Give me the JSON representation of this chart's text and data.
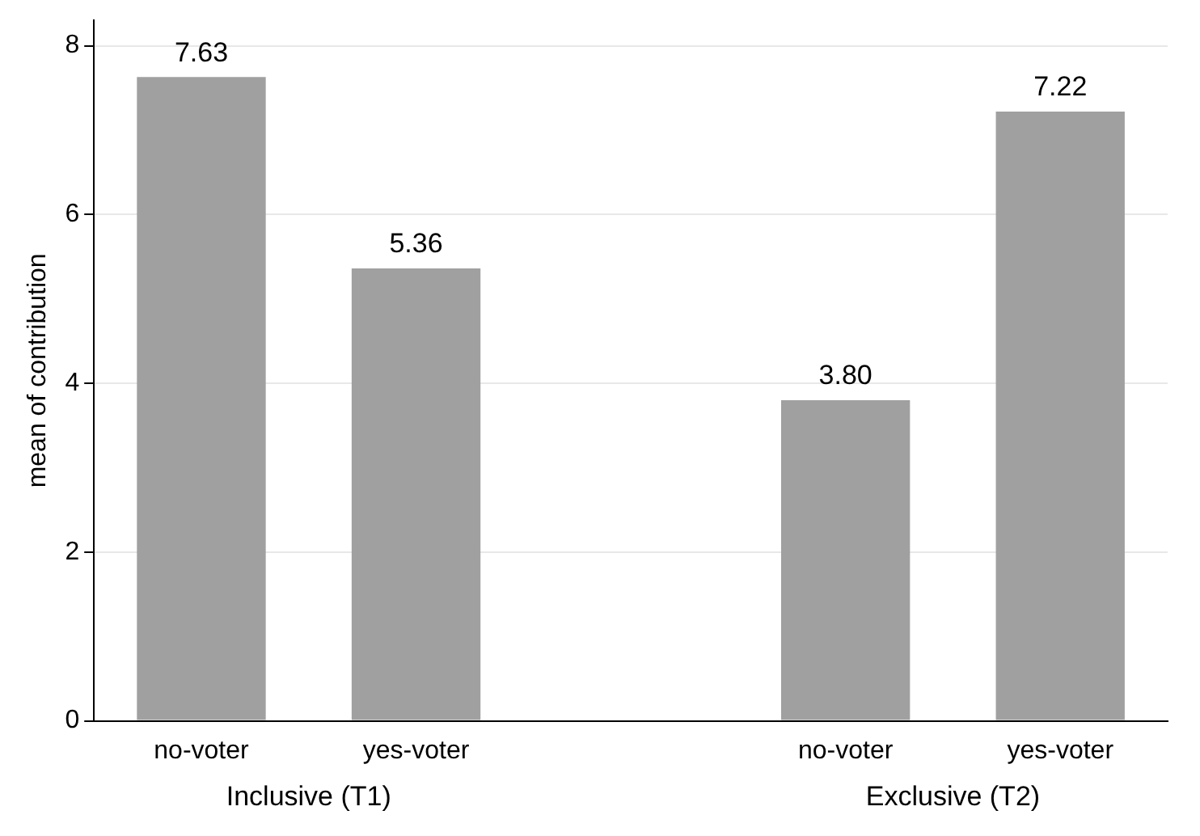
{
  "chart_data": {
    "type": "bar",
    "ylabel": "mean of contribution",
    "categories": [
      "no-voter",
      "yes-voter",
      null,
      "no-voter",
      "yes-voter"
    ],
    "values": [
      7.63,
      5.36,
      null,
      3.8,
      7.22
    ],
    "value_labels": [
      "7.63",
      "5.36",
      null,
      "3.80",
      "7.22"
    ],
    "color": "#a0a0a0",
    "ylim": [
      0,
      8.3
    ],
    "yticks": [
      0,
      2,
      4,
      6,
      8
    ],
    "grid": "y",
    "legend": false,
    "annotations": [
      "Inclusive (T1)",
      "Exclusive (T2)"
    ]
  }
}
